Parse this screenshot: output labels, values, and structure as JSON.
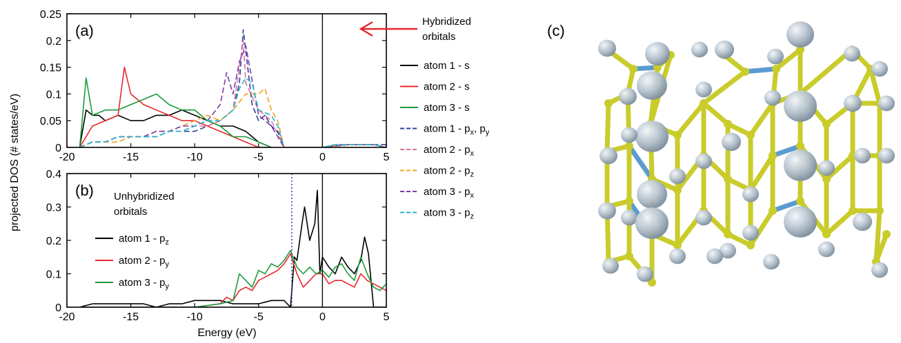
{
  "figure": {
    "ylabel": "projected DOS (# states/eV)",
    "xlabel": "Energy (eV)",
    "hybrid_annotation": "Hybridized orbitals",
    "unhybrid_annotation": "Unhybridized orbitals",
    "label_c": "(c)"
  },
  "colors": {
    "black": "#000000",
    "red": "#e8262b",
    "green": "#1a9a3a",
    "blue": "#2b3f9c",
    "pink": "#e0709a",
    "orange": "#f0a020",
    "purple": "#7a3aa8",
    "cyan": "#22b6cc",
    "carbon": "#c9cc2a",
    "boron": "#5b9bd0",
    "orbital": "#b8c4d0",
    "arrow": "#e8262b"
  },
  "chart_data": [
    {
      "type": "line",
      "panel_label": "(a)",
      "xlim": [
        -20,
        5
      ],
      "ylim": [
        0,
        0.25
      ],
      "x_ticks": [
        -20,
        -15,
        -10,
        -5,
        0,
        5
      ],
      "y_ticks": [
        0,
        0.05,
        0.1,
        0.15,
        0.2,
        0.25
      ],
      "y_tick_labels": [
        "0",
        "0.05",
        "0.1",
        "0.15",
        "0.2",
        "0.25"
      ],
      "vline_solid": 0,
      "legend": "right",
      "series": [
        {
          "name": "atom 1 - s",
          "base": "atom 1 - s",
          "color": "black",
          "dash": "solid",
          "x": [
            -19,
            -18.5,
            -18,
            -17.5,
            -17,
            -16,
            -15,
            -14,
            -13,
            -12,
            -11,
            -10,
            -9,
            -8,
            -7,
            -6,
            -5,
            -4
          ],
          "y": [
            0.0,
            0.07,
            0.06,
            0.06,
            0.05,
            0.06,
            0.05,
            0.05,
            0.06,
            0.06,
            0.07,
            0.06,
            0.05,
            0.04,
            0.04,
            0.03,
            0.01,
            0.0
          ]
        },
        {
          "name": "atom 2 - s",
          "base": "atom 2 - s",
          "color": "red",
          "dash": "solid",
          "x": [
            -19,
            -18,
            -17,
            -16,
            -15.5,
            -15,
            -14,
            -13,
            -12,
            -11,
            -10,
            -9,
            -8,
            -7,
            -6,
            -5,
            -4
          ],
          "y": [
            0.0,
            0.04,
            0.05,
            0.06,
            0.15,
            0.1,
            0.08,
            0.07,
            0.06,
            0.05,
            0.05,
            0.04,
            0.03,
            0.02,
            0.01,
            0.0,
            0.0
          ]
        },
        {
          "name": "atom 3 - s",
          "base": "atom 3 - s",
          "color": "green",
          "dash": "solid",
          "x": [
            -19,
            -18.5,
            -18,
            -17,
            -16,
            -15,
            -14,
            -13,
            -12,
            -11,
            -10,
            -9,
            -8,
            -7,
            -6,
            -5,
            -4
          ],
          "y": [
            0.0,
            0.13,
            0.06,
            0.07,
            0.07,
            0.08,
            0.09,
            0.1,
            0.08,
            0.07,
            0.07,
            0.05,
            0.04,
            0.02,
            0.02,
            0.01,
            0.0
          ]
        },
        {
          "name": "atom 1 - px, py",
          "base": "atom 1 - p",
          "sub": "x",
          "mid": ", p",
          "sub2": "y",
          "color": "blue",
          "dash": "8 4",
          "x": [
            -19,
            -18,
            -17,
            -16,
            -15,
            -14,
            -13,
            -12,
            -11,
            -10,
            -9,
            -8,
            -7,
            -6.5,
            -6.2,
            -6,
            -5.5,
            -5,
            -4.5,
            -4,
            -3.5,
            -3,
            0,
            1,
            2,
            3,
            4,
            5
          ],
          "y": [
            0.0,
            0.01,
            0.01,
            0.02,
            0.02,
            0.02,
            0.02,
            0.03,
            0.03,
            0.03,
            0.04,
            0.05,
            0.07,
            0.12,
            0.22,
            0.18,
            0.08,
            0.05,
            0.06,
            0.04,
            0.03,
            0.0,
            0.0,
            0.005,
            0.005,
            0.005,
            0.005,
            0.005
          ]
        },
        {
          "name": "atom 2 - px",
          "base": "atom 2 - p",
          "sub": "x",
          "color": "pink",
          "dash": "8 4",
          "x": [
            -19,
            -18,
            -17,
            -16,
            -15,
            -14,
            -13,
            -12,
            -11,
            -10,
            -9,
            -8,
            -7,
            -6.2,
            -6,
            -5,
            -4,
            -3,
            0,
            2,
            4,
            5
          ],
          "y": [
            0.0,
            0.01,
            0.01,
            0.02,
            0.02,
            0.02,
            0.03,
            0.03,
            0.03,
            0.04,
            0.04,
            0.05,
            0.07,
            0.2,
            0.12,
            0.07,
            0.05,
            0.0,
            0.0,
            0.005,
            0.005,
            0.0
          ]
        },
        {
          "name": "atom 2 - pz",
          "base": "atom 2 - p",
          "sub": "z",
          "color": "orange",
          "dash": "8 4",
          "x": [
            -19,
            -18,
            -17,
            -16,
            -15,
            -14,
            -13,
            -12,
            -11,
            -10,
            -9,
            -8,
            -7,
            -6,
            -5,
            -4.5,
            -4,
            -3.5,
            -3,
            0,
            2,
            4,
            5
          ],
          "y": [
            0.0,
            0.01,
            0.01,
            0.01,
            0.02,
            0.02,
            0.03,
            0.03,
            0.04,
            0.05,
            0.06,
            0.05,
            0.07,
            0.1,
            0.1,
            0.11,
            0.07,
            0.05,
            0.0,
            0.0,
            0.005,
            0.005,
            0.0
          ]
        },
        {
          "name": "atom 3 - px",
          "base": "atom 3 - p",
          "sub": "x",
          "color": "purple",
          "dash": "8 4",
          "x": [
            -19,
            -18,
            -17,
            -16,
            -15,
            -14,
            -13,
            -12,
            -11,
            -10,
            -9,
            -8,
            -7.5,
            -7,
            -6.5,
            -6,
            -5,
            -4,
            -3,
            0,
            2,
            4,
            5
          ],
          "y": [
            0.0,
            0.01,
            0.01,
            0.02,
            0.02,
            0.02,
            0.03,
            0.03,
            0.04,
            0.04,
            0.05,
            0.08,
            0.14,
            0.1,
            0.16,
            0.19,
            0.06,
            0.04,
            0.0,
            0.0,
            0.005,
            0.005,
            0.0
          ]
        },
        {
          "name": "atom 3 - pz",
          "base": "atom 3 - p",
          "sub": "z",
          "color": "cyan",
          "dash": "8 4",
          "x": [
            -19,
            -18,
            -17,
            -16,
            -15,
            -14,
            -13,
            -12,
            -11,
            -10,
            -9,
            -8,
            -7,
            -6.5,
            -6,
            -5.5,
            -5,
            -4,
            -3.5,
            -3,
            0,
            1,
            2,
            3,
            4,
            5
          ],
          "y": [
            0.0,
            0.01,
            0.01,
            0.02,
            0.02,
            0.02,
            0.02,
            0.03,
            0.03,
            0.04,
            0.05,
            0.05,
            0.07,
            0.11,
            0.13,
            0.12,
            0.07,
            0.06,
            0.04,
            0.0,
            0.0,
            0.005,
            0.005,
            0.005,
            0.005,
            0.0
          ]
        }
      ]
    },
    {
      "type": "line",
      "panel_label": "(b)",
      "xlim": [
        -20,
        5
      ],
      "ylim": [
        0,
        0.4
      ],
      "x_ticks": [
        -20,
        -15,
        -10,
        -5,
        0,
        5
      ],
      "y_ticks": [
        0,
        0.1,
        0.2,
        0.3,
        0.4
      ],
      "y_tick_labels": [
        "0",
        "0.1",
        "0.2",
        "0.3",
        "0.4"
      ],
      "vline_solid": 0,
      "vline_dotted": -2.4,
      "legend": "left",
      "series": [
        {
          "name": "atom 1 - pz",
          "base": "atom 1 - p",
          "sub": "z",
          "color": "black",
          "dash": "solid",
          "x": [
            -19,
            -18,
            -17,
            -16,
            -15,
            -14,
            -13,
            -12,
            -11,
            -10,
            -9,
            -8,
            -7,
            -6,
            -5,
            -4,
            -3,
            -2.5,
            -2.2,
            -2,
            -1.6,
            -1.4,
            -1,
            -0.6,
            -0.4,
            -0.2,
            0,
            0.5,
            1,
            1.5,
            2,
            2.5,
            3,
            3.3,
            3.6,
            4,
            4.5,
            5
          ],
          "y": [
            0.0,
            0.01,
            0.01,
            0.01,
            0.01,
            0.01,
            0.0,
            0.01,
            0.01,
            0.02,
            0.02,
            0.02,
            0.01,
            0.01,
            0.01,
            0.02,
            0.02,
            0.0,
            0.15,
            0.14,
            0.25,
            0.3,
            0.2,
            0.25,
            0.35,
            0.1,
            0.15,
            0.12,
            0.1,
            0.15,
            0.12,
            0.1,
            0.14,
            0.21,
            0.16,
            0.0,
            0.0,
            0.0
          ]
        },
        {
          "name": "atom 2 - py",
          "base": "atom 2 - p",
          "sub": "y",
          "color": "red",
          "dash": "solid",
          "x": [
            -19,
            -15,
            -10,
            -8,
            -7.5,
            -7,
            -6.5,
            -6,
            -5.5,
            -5,
            -4.5,
            -4,
            -3.5,
            -3,
            -2.5,
            -2,
            -1.5,
            -1,
            -0.5,
            0,
            0.5,
            1,
            1.5,
            2,
            2.5,
            3,
            3.5,
            4,
            4.5,
            5
          ],
          "y": [
            0.0,
            0.0,
            0.0,
            0.01,
            0.03,
            0.02,
            0.05,
            0.06,
            0.05,
            0.08,
            0.09,
            0.1,
            0.11,
            0.13,
            0.16,
            0.1,
            0.06,
            0.08,
            0.1,
            0.1,
            0.07,
            0.08,
            0.08,
            0.07,
            0.06,
            0.1,
            0.08,
            0.07,
            0.06,
            0.05
          ]
        },
        {
          "name": "atom 3 - py",
          "base": "atom 3 - p",
          "sub": "y",
          "color": "green",
          "dash": "solid",
          "x": [
            -19,
            -15,
            -10,
            -8,
            -7,
            -6.5,
            -6,
            -5.5,
            -5,
            -4.5,
            -4,
            -3.5,
            -3,
            -2.5,
            -2,
            -1.5,
            -1,
            -0.5,
            0,
            0.5,
            1,
            1.5,
            2,
            2.5,
            3,
            3.5,
            4,
            4.5,
            5
          ],
          "y": [
            0.0,
            0.0,
            0.0,
            0.01,
            0.02,
            0.1,
            0.08,
            0.06,
            0.11,
            0.1,
            0.13,
            0.12,
            0.14,
            0.17,
            0.12,
            0.1,
            0.12,
            0.1,
            0.11,
            0.09,
            0.12,
            0.13,
            0.1,
            0.08,
            0.15,
            0.1,
            0.06,
            0.05,
            0.07
          ]
        }
      ]
    }
  ]
}
